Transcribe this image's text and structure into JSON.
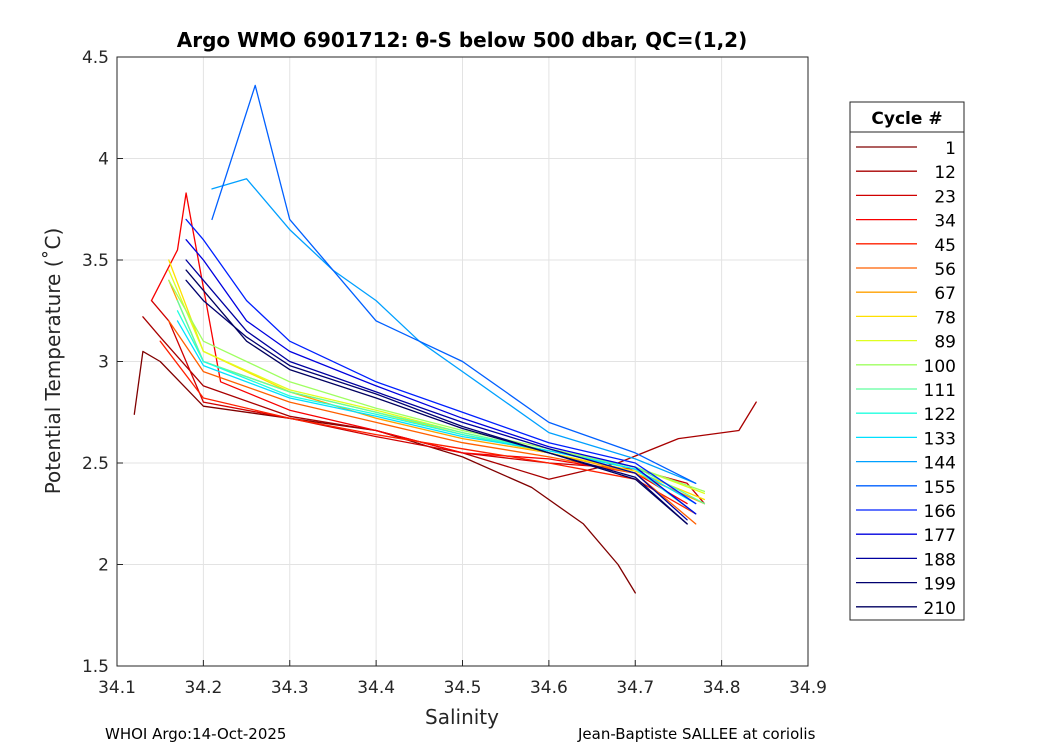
{
  "chart_data": {
    "type": "line",
    "title": "Argo WMO 6901712: θ-S below 500 dbar,  QC=(1,2)",
    "xlabel": "Salinity",
    "ylabel": "Potential Temperature (˚C)",
    "xlim": [
      34.1,
      34.9
    ],
    "ylim": [
      1.5,
      4.5
    ],
    "xticks": [
      "34.1",
      "34.2",
      "34.3",
      "34.4",
      "34.5",
      "34.6",
      "34.7",
      "34.8",
      "34.9"
    ],
    "yticks": [
      "1.5",
      "2",
      "2.5",
      "3",
      "3.5",
      "4",
      "4.5"
    ],
    "grid": true,
    "legend_title": "Cycle #",
    "legend_position": "right-outside",
    "series": [
      {
        "name": "1",
        "color": "#800000",
        "x": [
          34.12,
          34.13,
          34.15,
          34.2,
          34.3,
          34.4,
          34.5,
          34.58,
          34.64,
          34.68,
          34.7
        ],
        "y": [
          2.74,
          3.05,
          3.0,
          2.78,
          2.72,
          2.66,
          2.53,
          2.38,
          2.2,
          2.0,
          1.86
        ]
      },
      {
        "name": "12",
        "color": "#a80000",
        "x": [
          34.13,
          34.15,
          34.2,
          34.3,
          34.4,
          34.5,
          34.6,
          34.68,
          34.75,
          34.82,
          34.84
        ],
        "y": [
          3.22,
          3.12,
          2.88,
          2.73,
          2.66,
          2.55,
          2.42,
          2.5,
          2.62,
          2.66,
          2.8
        ]
      },
      {
        "name": "23",
        "color": "#d00000",
        "x": [
          34.14,
          34.16,
          34.2,
          34.3,
          34.4,
          34.5,
          34.6,
          34.7,
          34.76,
          34.78
        ],
        "y": [
          3.3,
          3.2,
          2.8,
          2.72,
          2.63,
          2.55,
          2.5,
          2.47,
          2.4,
          2.3
        ]
      },
      {
        "name": "34",
        "color": "#f80000",
        "x": [
          34.14,
          34.17,
          34.18,
          34.22,
          34.3,
          34.4,
          34.5,
          34.6,
          34.7,
          34.76
        ],
        "y": [
          3.3,
          3.55,
          3.83,
          2.9,
          2.76,
          2.66,
          2.55,
          2.52,
          2.45,
          2.3
        ]
      },
      {
        "name": "45",
        "color": "#ff2000",
        "x": [
          34.15,
          34.2,
          34.3,
          34.4,
          34.5,
          34.6,
          34.7,
          34.77
        ],
        "y": [
          3.1,
          2.82,
          2.72,
          2.64,
          2.57,
          2.5,
          2.42,
          2.25
        ]
      },
      {
        "name": "56",
        "color": "#ff6000",
        "x": [
          34.16,
          34.2,
          34.3,
          34.4,
          34.5,
          34.6,
          34.7,
          34.77
        ],
        "y": [
          3.2,
          2.95,
          2.8,
          2.7,
          2.6,
          2.53,
          2.45,
          2.2
        ]
      },
      {
        "name": "67",
        "color": "#ffa000",
        "x": [
          34.16,
          34.2,
          34.3,
          34.4,
          34.5,
          34.6,
          34.7,
          34.78
        ],
        "y": [
          3.4,
          3.0,
          2.85,
          2.72,
          2.62,
          2.55,
          2.45,
          2.3
        ]
      },
      {
        "name": "78",
        "color": "#ffe000",
        "x": [
          34.16,
          34.2,
          34.3,
          34.4,
          34.5,
          34.6,
          34.7,
          34.78
        ],
        "y": [
          3.5,
          3.05,
          2.85,
          2.75,
          2.64,
          2.55,
          2.46,
          2.32
        ]
      },
      {
        "name": "89",
        "color": "#dfff20",
        "x": [
          34.16,
          34.2,
          34.3,
          34.4,
          34.5,
          34.6,
          34.7,
          34.78
        ],
        "y": [
          3.45,
          3.05,
          2.86,
          2.76,
          2.65,
          2.56,
          2.48,
          2.35
        ]
      },
      {
        "name": "100",
        "color": "#9fff60",
        "x": [
          34.16,
          34.2,
          34.3,
          34.4,
          34.5,
          34.6,
          34.7,
          34.78
        ],
        "y": [
          3.4,
          3.1,
          2.9,
          2.77,
          2.66,
          2.57,
          2.48,
          2.36
        ]
      },
      {
        "name": "111",
        "color": "#60ff9f",
        "x": [
          34.17,
          34.2,
          34.3,
          34.4,
          34.5,
          34.6,
          34.7,
          34.78
        ],
        "y": [
          3.3,
          3.0,
          2.85,
          2.75,
          2.65,
          2.56,
          2.48,
          2.3
        ]
      },
      {
        "name": "122",
        "color": "#20ffdf",
        "x": [
          34.17,
          34.2,
          34.3,
          34.4,
          34.5,
          34.6,
          34.7,
          34.77
        ],
        "y": [
          3.25,
          3.0,
          2.83,
          2.74,
          2.64,
          2.56,
          2.47,
          2.25
        ]
      },
      {
        "name": "133",
        "color": "#00e0ff",
        "x": [
          34.17,
          34.2,
          34.3,
          34.4,
          34.5,
          34.6,
          34.7,
          34.77
        ],
        "y": [
          3.2,
          2.98,
          2.82,
          2.73,
          2.63,
          2.56,
          2.47,
          2.3
        ]
      },
      {
        "name": "144",
        "color": "#00a0ff",
        "x": [
          34.21,
          34.25,
          34.3,
          34.35,
          34.4,
          34.45,
          34.5,
          34.55,
          34.6,
          34.7,
          34.77
        ],
        "y": [
          3.85,
          3.9,
          3.65,
          3.45,
          3.3,
          3.1,
          2.95,
          2.8,
          2.65,
          2.52,
          2.4
        ]
      },
      {
        "name": "155",
        "color": "#0060ff",
        "x": [
          34.21,
          34.26,
          34.3,
          34.35,
          34.4,
          34.45,
          34.5,
          34.55,
          34.6,
          34.7,
          34.77
        ],
        "y": [
          3.7,
          4.36,
          3.7,
          3.45,
          3.2,
          3.1,
          3.0,
          2.85,
          2.7,
          2.55,
          2.4
        ]
      },
      {
        "name": "166",
        "color": "#0020ff",
        "x": [
          34.18,
          34.2,
          34.25,
          34.3,
          34.4,
          34.5,
          34.6,
          34.7,
          34.77
        ],
        "y": [
          3.7,
          3.6,
          3.3,
          3.1,
          2.9,
          2.75,
          2.6,
          2.5,
          2.3
        ]
      },
      {
        "name": "177",
        "color": "#0000df",
        "x": [
          34.18,
          34.2,
          34.25,
          34.3,
          34.4,
          34.5,
          34.6,
          34.7,
          34.77
        ],
        "y": [
          3.6,
          3.5,
          3.2,
          3.05,
          2.88,
          2.72,
          2.58,
          2.48,
          2.25
        ]
      },
      {
        "name": "188",
        "color": "#00009f",
        "x": [
          34.18,
          34.2,
          34.25,
          34.3,
          34.4,
          34.5,
          34.6,
          34.7,
          34.76
        ],
        "y": [
          3.5,
          3.4,
          3.15,
          3.0,
          2.85,
          2.7,
          2.57,
          2.45,
          2.22
        ]
      },
      {
        "name": "199",
        "color": "#00006f",
        "x": [
          34.18,
          34.2,
          34.25,
          34.3,
          34.4,
          34.5,
          34.6,
          34.7,
          34.76
        ],
        "y": [
          3.4,
          3.3,
          3.12,
          2.98,
          2.84,
          2.68,
          2.55,
          2.43,
          2.2
        ]
      },
      {
        "name": "210",
        "color": "#000060",
        "x": [
          34.18,
          34.2,
          34.25,
          34.3,
          34.4,
          34.5,
          34.6,
          34.7,
          34.76
        ],
        "y": [
          3.45,
          3.35,
          3.1,
          2.96,
          2.82,
          2.67,
          2.55,
          2.42,
          2.2
        ]
      }
    ]
  },
  "footer": {
    "left": "WHOI Argo:14-Oct-2025",
    "right": "Jean-Baptiste SALLEE at coriolis"
  }
}
